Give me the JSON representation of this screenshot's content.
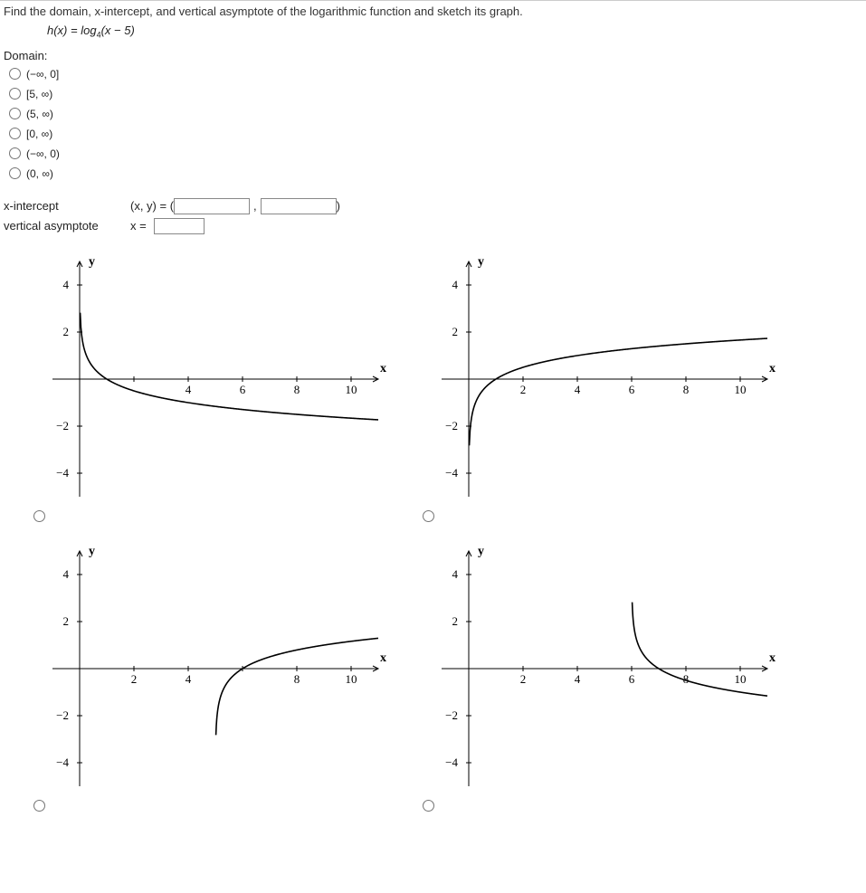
{
  "question": {
    "prompt": "Find the domain, x-intercept, and vertical asymptote of the logarithmic function and sketch its graph.",
    "formula_prefix": "h(x) = log",
    "formula_sub": "4",
    "formula_suffix": "(x − 5)"
  },
  "domain": {
    "label": "Domain:",
    "options": [
      "(−∞, 0]",
      "[5, ∞)",
      "(5, ∞)",
      "[0, ∞)",
      "(−∞, 0)",
      "(0, ∞)"
    ]
  },
  "intercept": {
    "label": "x-intercept",
    "coord_label": "(x, y) = (",
    "sep": ",",
    "close": ")"
  },
  "asymptote": {
    "label": "vertical asymptote",
    "eq_label": "x ="
  },
  "axes": {
    "xlabel": "x",
    "ylabel": "y",
    "xticks": [
      2,
      4,
      6,
      8,
      10
    ],
    "yticks": [
      4,
      2,
      -2,
      -4
    ],
    "colors": {
      "axis": "#000000",
      "curve": "#000000",
      "tick_text": "#000000",
      "background": "#ffffff"
    },
    "stroke_width": 1.6
  },
  "graphs": {
    "g1": {
      "asymptote_x": 0,
      "xintercept": 1,
      "reflect_y": true,
      "hide_xtick": 2
    },
    "g2": {
      "asymptote_x": 0,
      "xintercept": 1,
      "reflect_y": false,
      "hide_xtick": null
    },
    "g3": {
      "asymptote_x": 5,
      "xintercept": 6,
      "reflect_y": false,
      "hide_xtick": 6
    },
    "g4": {
      "asymptote_x": 6,
      "xintercept": 7,
      "reflect_y": true,
      "hide_xtick": null
    }
  }
}
